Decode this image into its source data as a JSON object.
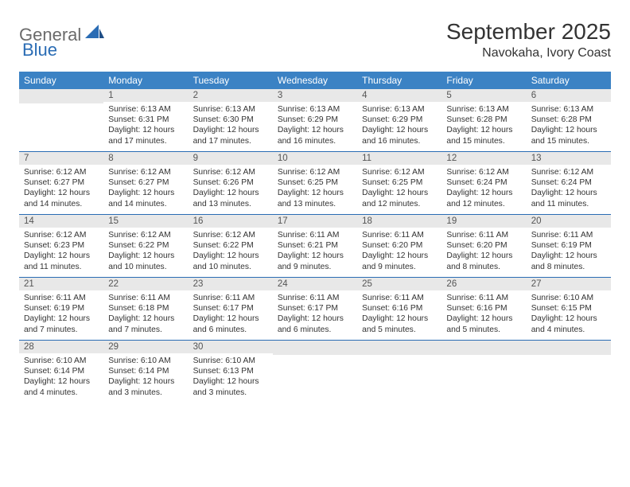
{
  "brand": {
    "part1": "General",
    "part2": "Blue"
  },
  "title": "September 2025",
  "location": "Navokaha, Ivory Coast",
  "colors": {
    "header_bg": "#3b82c4",
    "header_text": "#ffffff",
    "daynum_bg": "#e8e8e8",
    "daynum_text": "#555555",
    "week_border": "#2a6cb4",
    "body_text": "#333333",
    "logo_gray": "#6b6b6b",
    "logo_blue": "#2a6cb4"
  },
  "day_headers": [
    "Sunday",
    "Monday",
    "Tuesday",
    "Wednesday",
    "Thursday",
    "Friday",
    "Saturday"
  ],
  "weeks": [
    [
      {
        "day": null
      },
      {
        "day": 1,
        "sunrise": "6:13 AM",
        "sunset": "6:31 PM",
        "daylight": "12 hours and 17 minutes."
      },
      {
        "day": 2,
        "sunrise": "6:13 AM",
        "sunset": "6:30 PM",
        "daylight": "12 hours and 17 minutes."
      },
      {
        "day": 3,
        "sunrise": "6:13 AM",
        "sunset": "6:29 PM",
        "daylight": "12 hours and 16 minutes."
      },
      {
        "day": 4,
        "sunrise": "6:13 AM",
        "sunset": "6:29 PM",
        "daylight": "12 hours and 16 minutes."
      },
      {
        "day": 5,
        "sunrise": "6:13 AM",
        "sunset": "6:28 PM",
        "daylight": "12 hours and 15 minutes."
      },
      {
        "day": 6,
        "sunrise": "6:13 AM",
        "sunset": "6:28 PM",
        "daylight": "12 hours and 15 minutes."
      }
    ],
    [
      {
        "day": 7,
        "sunrise": "6:12 AM",
        "sunset": "6:27 PM",
        "daylight": "12 hours and 14 minutes."
      },
      {
        "day": 8,
        "sunrise": "6:12 AM",
        "sunset": "6:27 PM",
        "daylight": "12 hours and 14 minutes."
      },
      {
        "day": 9,
        "sunrise": "6:12 AM",
        "sunset": "6:26 PM",
        "daylight": "12 hours and 13 minutes."
      },
      {
        "day": 10,
        "sunrise": "6:12 AM",
        "sunset": "6:25 PM",
        "daylight": "12 hours and 13 minutes."
      },
      {
        "day": 11,
        "sunrise": "6:12 AM",
        "sunset": "6:25 PM",
        "daylight": "12 hours and 12 minutes."
      },
      {
        "day": 12,
        "sunrise": "6:12 AM",
        "sunset": "6:24 PM",
        "daylight": "12 hours and 12 minutes."
      },
      {
        "day": 13,
        "sunrise": "6:12 AM",
        "sunset": "6:24 PM",
        "daylight": "12 hours and 11 minutes."
      }
    ],
    [
      {
        "day": 14,
        "sunrise": "6:12 AM",
        "sunset": "6:23 PM",
        "daylight": "12 hours and 11 minutes."
      },
      {
        "day": 15,
        "sunrise": "6:12 AM",
        "sunset": "6:22 PM",
        "daylight": "12 hours and 10 minutes."
      },
      {
        "day": 16,
        "sunrise": "6:12 AM",
        "sunset": "6:22 PM",
        "daylight": "12 hours and 10 minutes."
      },
      {
        "day": 17,
        "sunrise": "6:11 AM",
        "sunset": "6:21 PM",
        "daylight": "12 hours and 9 minutes."
      },
      {
        "day": 18,
        "sunrise": "6:11 AM",
        "sunset": "6:20 PM",
        "daylight": "12 hours and 9 minutes."
      },
      {
        "day": 19,
        "sunrise": "6:11 AM",
        "sunset": "6:20 PM",
        "daylight": "12 hours and 8 minutes."
      },
      {
        "day": 20,
        "sunrise": "6:11 AM",
        "sunset": "6:19 PM",
        "daylight": "12 hours and 8 minutes."
      }
    ],
    [
      {
        "day": 21,
        "sunrise": "6:11 AM",
        "sunset": "6:19 PM",
        "daylight": "12 hours and 7 minutes."
      },
      {
        "day": 22,
        "sunrise": "6:11 AM",
        "sunset": "6:18 PM",
        "daylight": "12 hours and 7 minutes."
      },
      {
        "day": 23,
        "sunrise": "6:11 AM",
        "sunset": "6:17 PM",
        "daylight": "12 hours and 6 minutes."
      },
      {
        "day": 24,
        "sunrise": "6:11 AM",
        "sunset": "6:17 PM",
        "daylight": "12 hours and 6 minutes."
      },
      {
        "day": 25,
        "sunrise": "6:11 AM",
        "sunset": "6:16 PM",
        "daylight": "12 hours and 5 minutes."
      },
      {
        "day": 26,
        "sunrise": "6:11 AM",
        "sunset": "6:16 PM",
        "daylight": "12 hours and 5 minutes."
      },
      {
        "day": 27,
        "sunrise": "6:10 AM",
        "sunset": "6:15 PM",
        "daylight": "12 hours and 4 minutes."
      }
    ],
    [
      {
        "day": 28,
        "sunrise": "6:10 AM",
        "sunset": "6:14 PM",
        "daylight": "12 hours and 4 minutes."
      },
      {
        "day": 29,
        "sunrise": "6:10 AM",
        "sunset": "6:14 PM",
        "daylight": "12 hours and 3 minutes."
      },
      {
        "day": 30,
        "sunrise": "6:10 AM",
        "sunset": "6:13 PM",
        "daylight": "12 hours and 3 minutes."
      },
      {
        "day": null
      },
      {
        "day": null
      },
      {
        "day": null
      },
      {
        "day": null
      }
    ]
  ],
  "labels": {
    "sunrise": "Sunrise:",
    "sunset": "Sunset:",
    "daylight": "Daylight:"
  }
}
